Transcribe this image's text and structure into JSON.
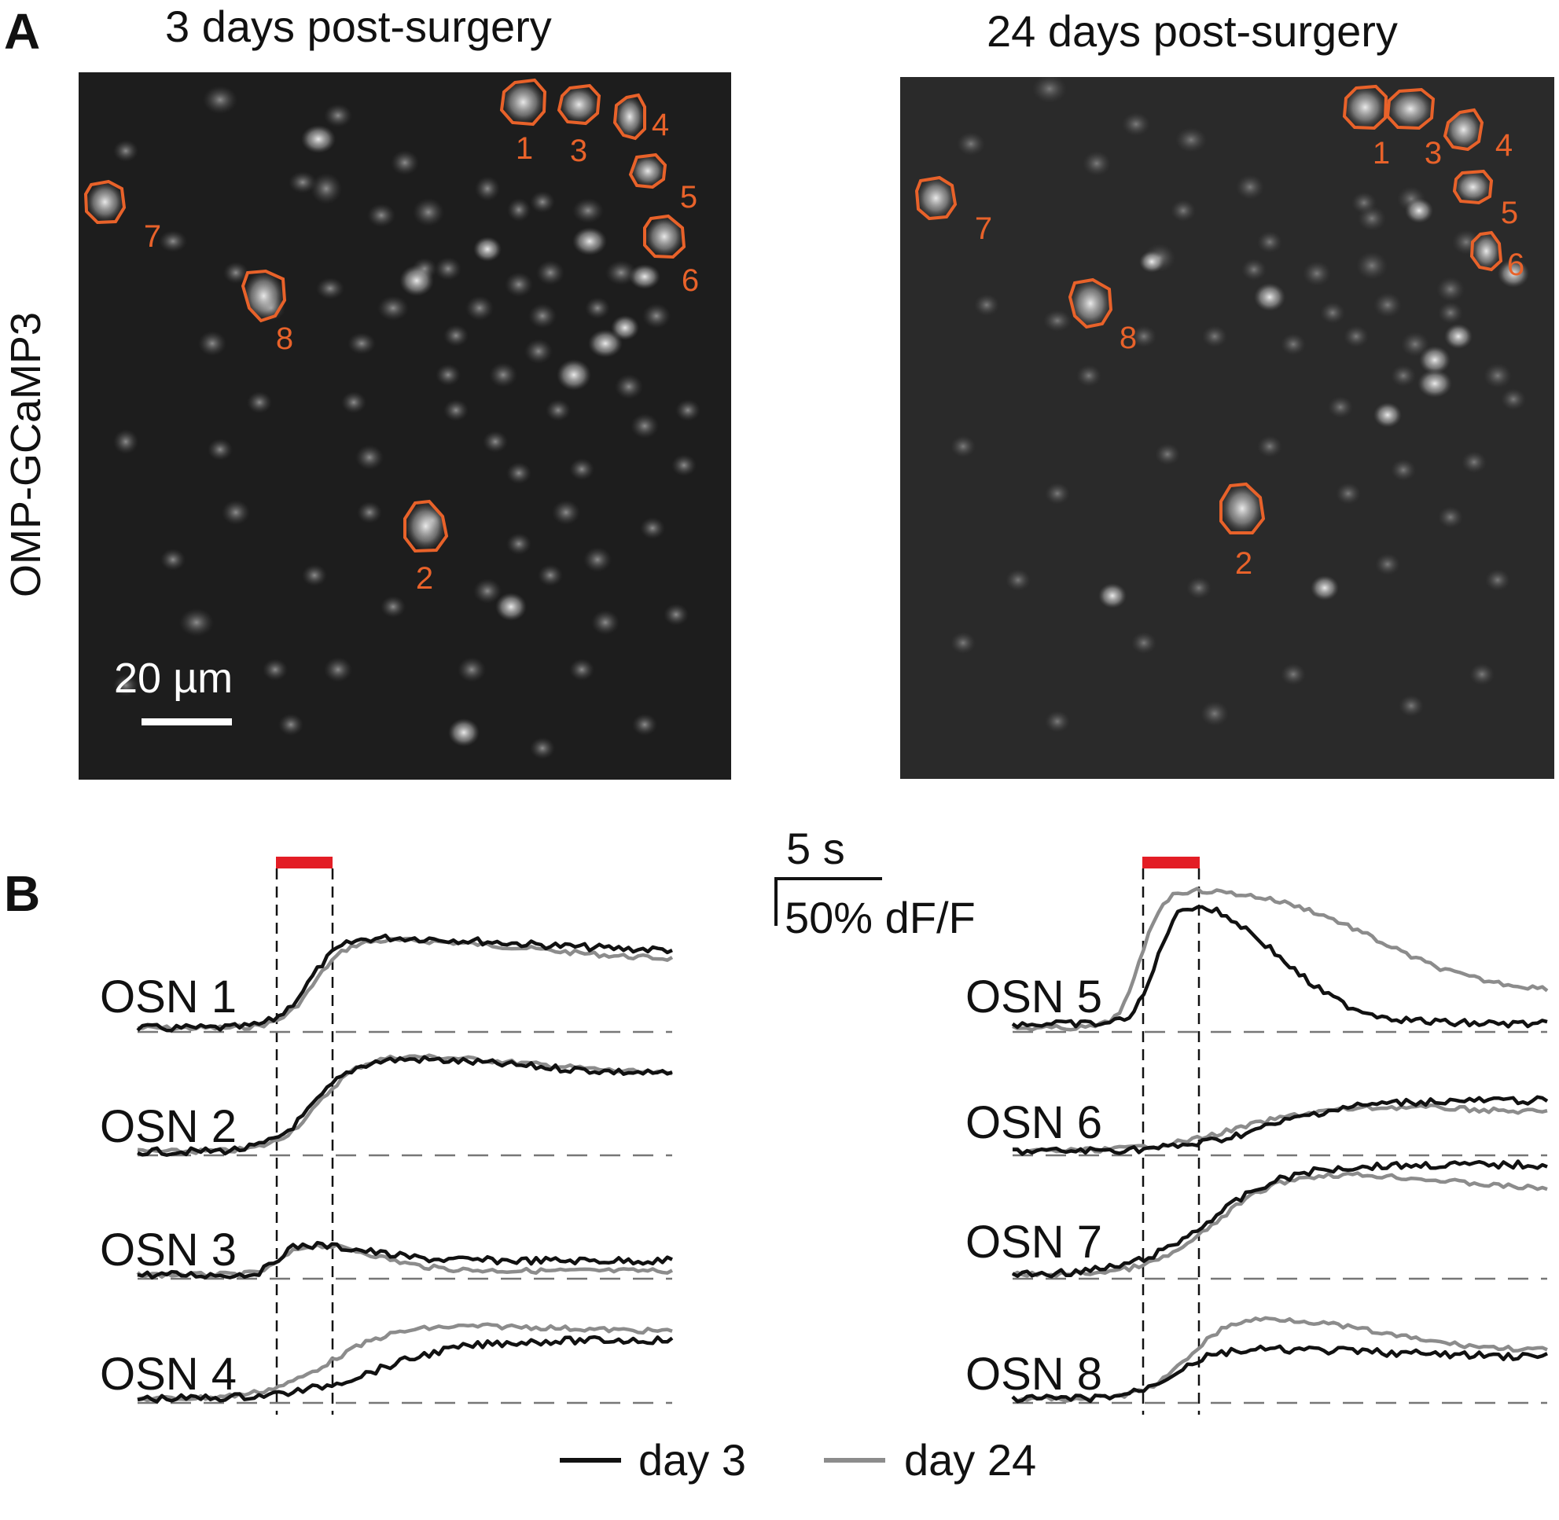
{
  "panel_a": {
    "letter": "A",
    "y_label": "OMP-GCaMP3",
    "scale_bar": "20 µm",
    "images": [
      {
        "title": "3 days post-surgery",
        "cells": [
          "1",
          "3",
          "4",
          "5",
          "6",
          "7",
          "8",
          "2"
        ]
      },
      {
        "title": "24 days post-surgery",
        "cells": [
          "1",
          "3",
          "4",
          "5",
          "6",
          "7",
          "8",
          "2"
        ]
      }
    ]
  },
  "panel_b": {
    "letter": "B",
    "scale_time": "5 s",
    "scale_amp": "50% dF/F",
    "osn_labels": [
      "OSN 1",
      "OSN 2",
      "OSN 3",
      "OSN 4",
      "OSN 5",
      "OSN 6",
      "OSN 7",
      "OSN 8"
    ],
    "legend": [
      {
        "label": "day 3",
        "color": "#111111"
      },
      {
        "label": "day 24",
        "color": "#8c8c8c"
      }
    ],
    "stimulus_color": "#e31d25",
    "roi_color": "#e8622a"
  }
}
